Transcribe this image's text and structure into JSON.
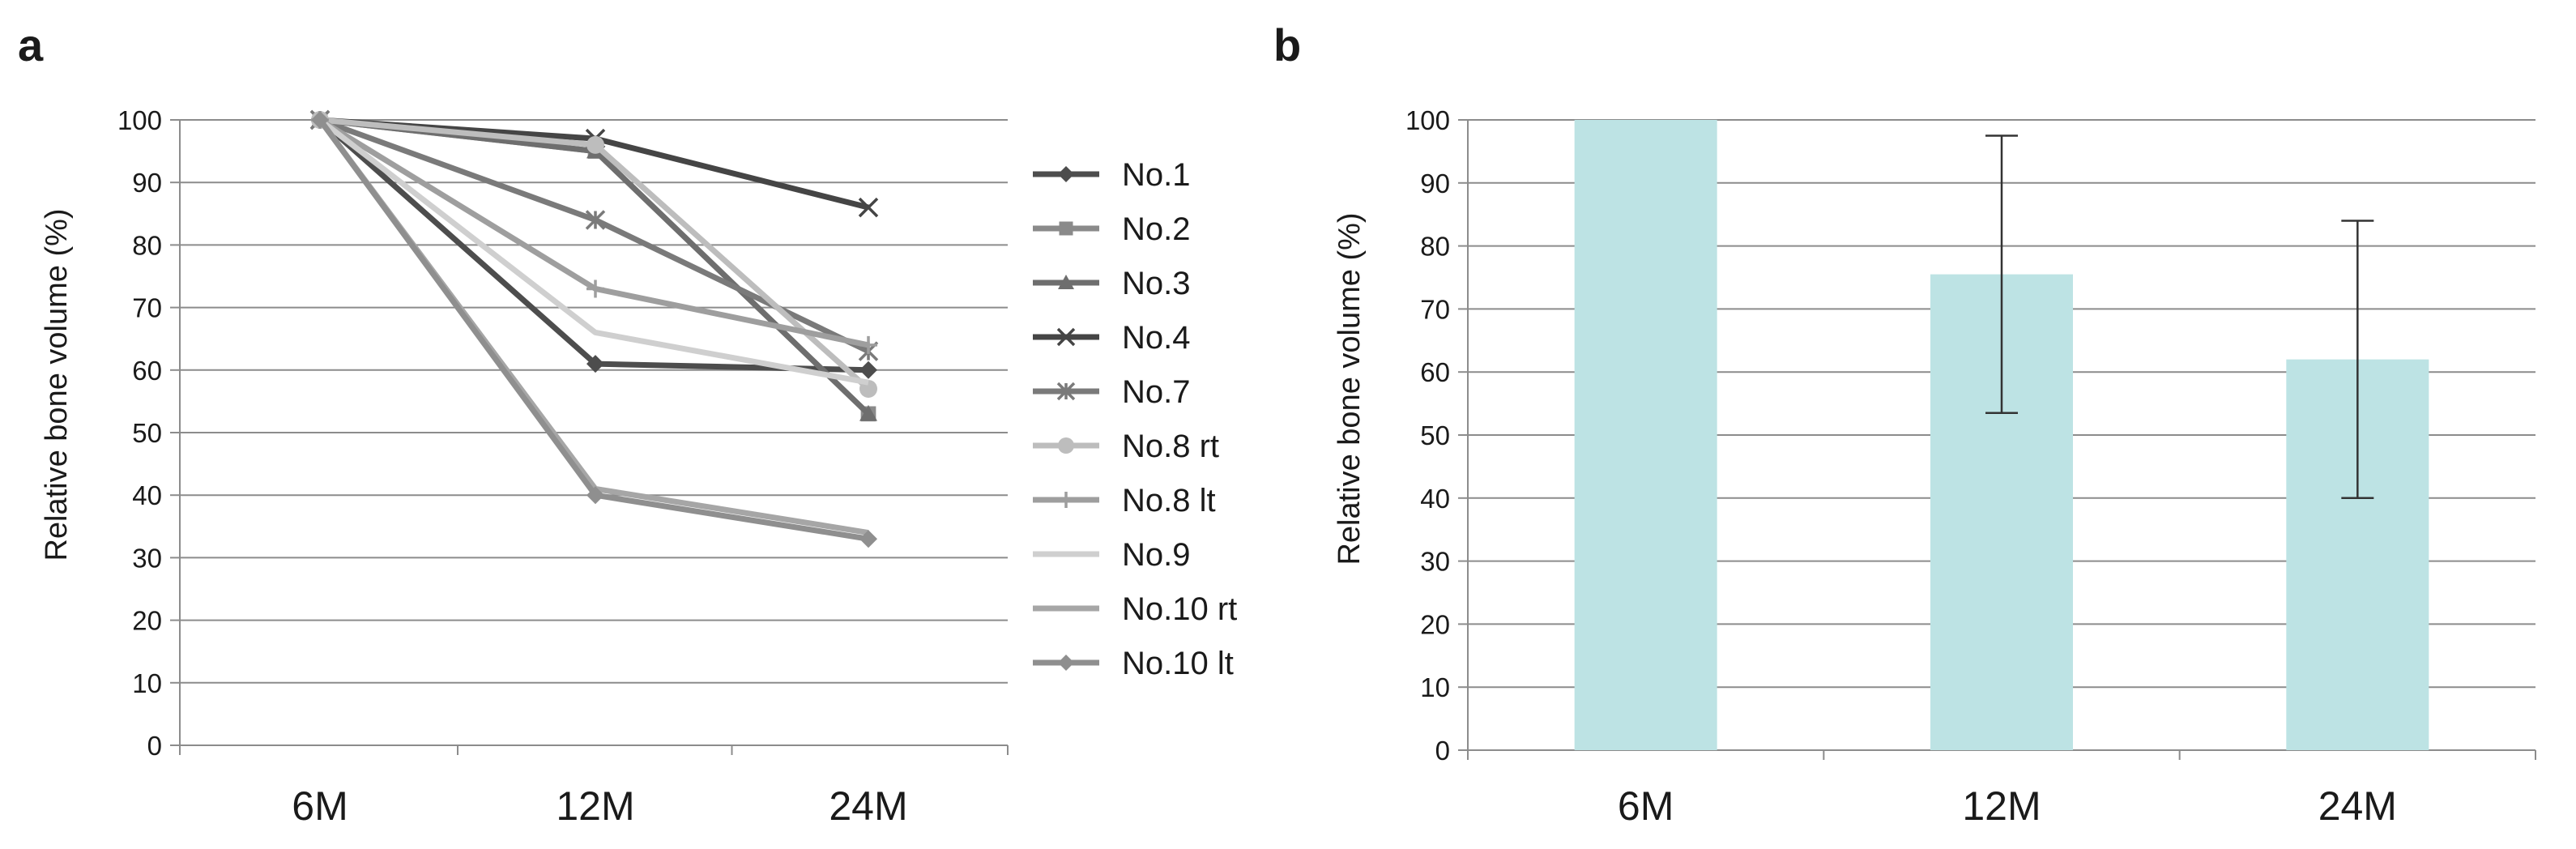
{
  "chart_data": [
    {
      "panel": "a",
      "type": "line",
      "categories": [
        "6M",
        "12M",
        "24M"
      ],
      "ylabel": "Relative bone volume (%)",
      "ylim": [
        0,
        100
      ],
      "yticks": [
        0,
        10,
        20,
        30,
        40,
        50,
        60,
        70,
        80,
        90,
        100
      ],
      "grid": true,
      "legend_position": "right",
      "series": [
        {
          "name": "No.1",
          "values": [
            100,
            61,
            60
          ],
          "color": "#4d4d4d",
          "marker": "diamond"
        },
        {
          "name": "No.2",
          "values": [
            100,
            95,
            53
          ],
          "color": "#8a8a8a",
          "marker": "square"
        },
        {
          "name": "No.3",
          "values": [
            100,
            95,
            53
          ],
          "color": "#6e6e6e",
          "marker": "triangle"
        },
        {
          "name": "No.4",
          "values": [
            100,
            97,
            86
          ],
          "color": "#454545",
          "marker": "x"
        },
        {
          "name": "No.7",
          "values": [
            100,
            84,
            63
          ],
          "color": "#7a7a7a",
          "marker": "star"
        },
        {
          "name": "No.8 rt",
          "values": [
            100,
            96,
            57
          ],
          "color": "#bdbdbd",
          "marker": "circle"
        },
        {
          "name": "No.8 lt",
          "values": [
            100,
            73,
            64
          ],
          "color": "#9e9e9e",
          "marker": "plus"
        },
        {
          "name": "No.9",
          "values": [
            100,
            66,
            58
          ],
          "color": "#cfcfcf",
          "marker": "none"
        },
        {
          "name": "No.10 rt",
          "values": [
            100,
            41,
            34
          ],
          "color": "#a6a6a6",
          "marker": "none"
        },
        {
          "name": "No.10 lt",
          "values": [
            100,
            40,
            33
          ],
          "color": "#8f8f8f",
          "marker": "diamond"
        }
      ]
    },
    {
      "panel": "b",
      "type": "bar",
      "categories": [
        "6M",
        "12M",
        "24M"
      ],
      "values": [
        100,
        75.5,
        62
      ],
      "errors": [
        0,
        22,
        22
      ],
      "ylabel": "Relative bone volume (%)",
      "ylim": [
        0,
        100
      ],
      "yticks": [
        0,
        10,
        20,
        30,
        40,
        50,
        60,
        70,
        80,
        90,
        100
      ],
      "grid": true,
      "bar_color": "#bde3e4"
    }
  ]
}
